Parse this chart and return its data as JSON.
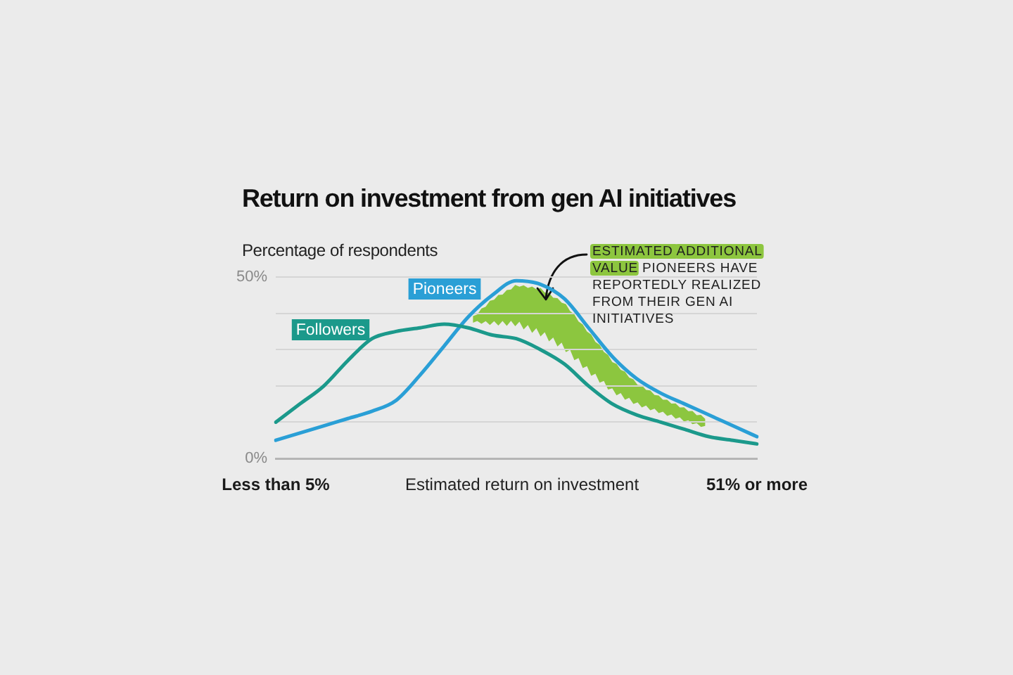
{
  "chart_data": {
    "type": "line",
    "title": "Return on investment from gen AI initiatives",
    "xlabel": "Estimated return on investment",
    "ylabel": "Percentage of respondents",
    "annotations": [
      "ESTIMATED ADDITIONAL VALUE PIONEERS HAVE REPORTEDLY REALIZED FROM THEIR GEN AI INITIATIVES"
    ],
    "categories": [
      "Less than 5%",
      null,
      null,
      null,
      null,
      null,
      null,
      null,
      null,
      null,
      null,
      null,
      null,
      null,
      null,
      null,
      null,
      null,
      null,
      null,
      "51% or more"
    ],
    "series": [
      {
        "name": "Followers",
        "color": "#1b998b",
        "values": [
          10,
          15,
          20,
          27,
          33,
          35,
          36,
          37,
          36,
          34,
          33,
          30,
          26,
          20,
          15,
          12,
          10,
          8,
          6,
          5,
          4
        ]
      },
      {
        "name": "Pioneers",
        "color": "#2a9fd6",
        "values": [
          5,
          7,
          9,
          11,
          13,
          16,
          23,
          31,
          39,
          45,
          49,
          48,
          44,
          36,
          28,
          22,
          18,
          15,
          12,
          9,
          6
        ]
      }
    ],
    "ylim": [
      0,
      50
    ],
    "yticks": [
      {
        "value": 0,
        "label": "0%"
      },
      {
        "value": 10,
        "label": null
      },
      {
        "value": 20,
        "label": null
      },
      {
        "value": 30,
        "label": null
      },
      {
        "value": 40,
        "label": null
      },
      {
        "value": 50,
        "label": "50%"
      }
    ],
    "grid": "y"
  }
}
